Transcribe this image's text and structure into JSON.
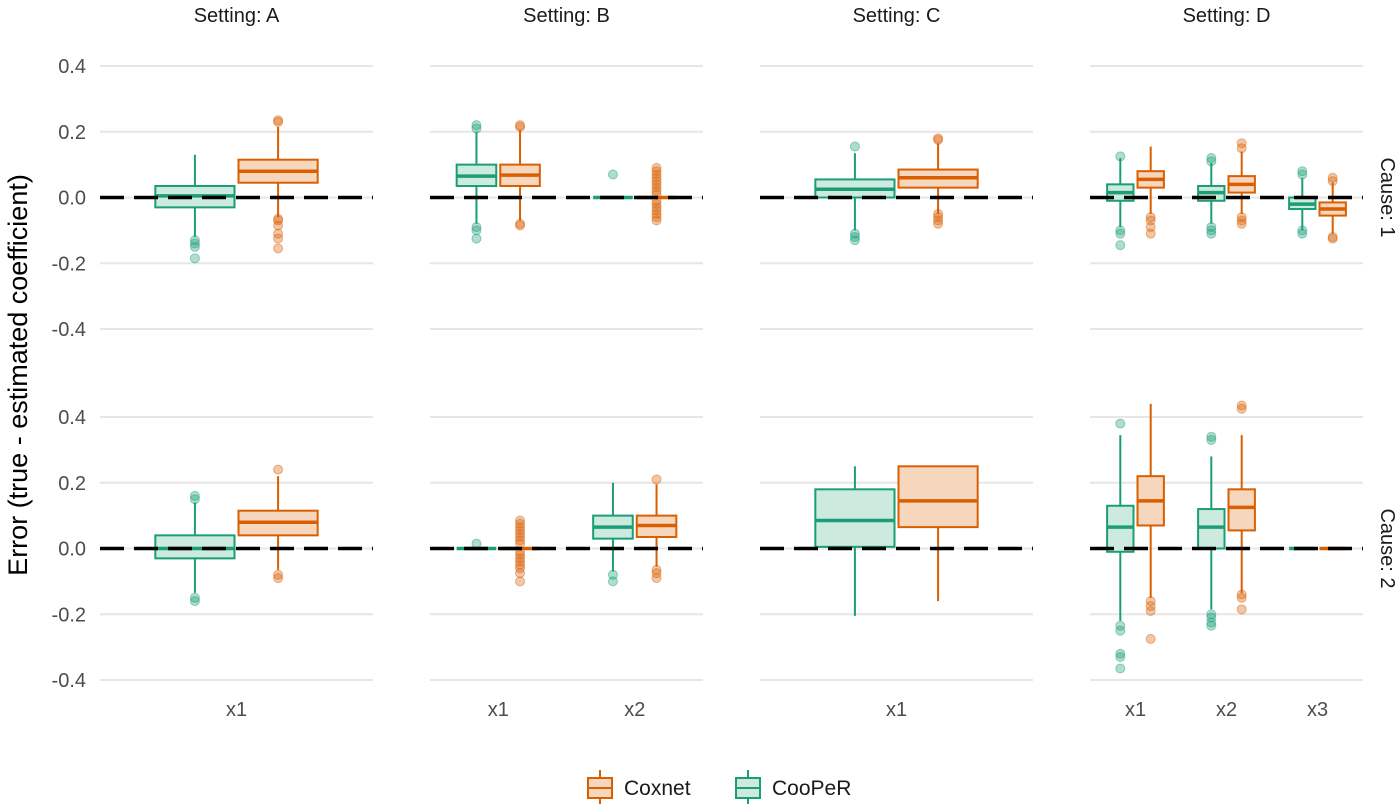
{
  "chart_data": {
    "type": "boxplot",
    "ylabel": "Error (true - estimated coefficient)",
    "y_ticks": [
      "0.4",
      "0.2",
      "0.0",
      "-0.2",
      "-0.4"
    ],
    "ylim": [
      -0.4,
      0.4
    ],
    "reference_line": 0.0,
    "grid": true,
    "legend": {
      "position": "bottom",
      "entries": [
        {
          "name": "Coxnet",
          "color": "#d95f02"
        },
        {
          "name": "CooPeR",
          "color": "#1b9e77"
        }
      ]
    },
    "colors": {
      "Coxnet": "#d95f02",
      "CooPeR": "#1b9e77"
    },
    "columns": [
      {
        "label": "Setting: A",
        "categories": [
          "x1"
        ]
      },
      {
        "label": "Setting: B",
        "categories": [
          "x1",
          "x2"
        ]
      },
      {
        "label": "Setting: C",
        "categories": [
          "x1"
        ]
      },
      {
        "label": "Setting: D",
        "categories": [
          "x1",
          "x2",
          "x3"
        ]
      }
    ],
    "rows": [
      {
        "label": "Cause: 1"
      },
      {
        "label": "Cause: 2"
      }
    ],
    "panels": [
      {
        "row": 0,
        "col": 0,
        "boxes": [
          {
            "cat": "x1",
            "method": "CooPeR",
            "q1": -0.03,
            "median": 0.005,
            "q3": 0.035,
            "lower": -0.12,
            "upper": 0.13,
            "outliers": [
              -0.13,
              -0.14,
              -0.15,
              -0.185
            ]
          },
          {
            "cat": "x1",
            "method": "Coxnet",
            "q1": 0.045,
            "median": 0.08,
            "q3": 0.115,
            "lower": -0.06,
            "upper": 0.215,
            "outliers": [
              0.235,
              0.23,
              -0.065,
              -0.07,
              -0.085,
              -0.11,
              -0.125,
              -0.155
            ]
          }
        ]
      },
      {
        "row": 0,
        "col": 1,
        "boxes": [
          {
            "cat": "x1",
            "method": "CooPeR",
            "q1": 0.035,
            "median": 0.065,
            "q3": 0.1,
            "lower": -0.08,
            "upper": 0.2,
            "outliers": [
              0.22,
              0.21,
              -0.09,
              -0.1,
              -0.125
            ]
          },
          {
            "cat": "x1",
            "method": "Coxnet",
            "q1": 0.035,
            "median": 0.068,
            "q3": 0.1,
            "lower": -0.07,
            "upper": 0.205,
            "outliers": [
              0.22,
              0.215,
              -0.08,
              -0.085
            ]
          },
          {
            "cat": "x2",
            "method": "CooPeR",
            "q1": 0.0,
            "median": 0.0,
            "q3": 0.0,
            "lower": 0.0,
            "upper": 0.0,
            "outliers": [
              0.07
            ]
          },
          {
            "cat": "x2",
            "method": "Coxnet",
            "q1": 0.0,
            "median": 0.0,
            "q3": 0.0,
            "lower": 0.0,
            "upper": 0.0,
            "outliers": [
              0.09,
              0.08,
              0.07,
              0.06,
              0.05,
              0.04,
              0.03,
              0.02,
              0.01,
              -0.01,
              -0.02,
              -0.03,
              -0.04,
              -0.05,
              -0.06,
              -0.07
            ]
          }
        ]
      },
      {
        "row": 0,
        "col": 2,
        "boxes": [
          {
            "cat": "x1",
            "method": "CooPeR",
            "q1": 0.0,
            "median": 0.025,
            "q3": 0.055,
            "lower": -0.1,
            "upper": 0.135,
            "outliers": [
              0.155,
              -0.11,
              -0.12,
              -0.13
            ]
          },
          {
            "cat": "x1",
            "method": "Coxnet",
            "q1": 0.03,
            "median": 0.06,
            "q3": 0.085,
            "lower": -0.05,
            "upper": 0.165,
            "outliers": [
              0.18,
              0.175,
              -0.05,
              -0.06,
              -0.07,
              -0.08
            ]
          }
        ]
      },
      {
        "row": 0,
        "col": 3,
        "boxes": [
          {
            "cat": "x1",
            "method": "CooPeR",
            "q1": -0.01,
            "median": 0.015,
            "q3": 0.04,
            "lower": -0.09,
            "upper": 0.12,
            "outliers": [
              0.125,
              -0.1,
              -0.11,
              -0.145
            ]
          },
          {
            "cat": "x1",
            "method": "Coxnet",
            "q1": 0.03,
            "median": 0.055,
            "q3": 0.08,
            "lower": -0.05,
            "upper": 0.155,
            "outliers": [
              -0.06,
              -0.07,
              -0.09,
              -0.11
            ]
          },
          {
            "cat": "x2",
            "method": "CooPeR",
            "q1": -0.01,
            "median": 0.015,
            "q3": 0.035,
            "lower": -0.08,
            "upper": 0.105,
            "outliers": [
              0.12,
              0.11,
              -0.09,
              -0.1,
              -0.11
            ]
          },
          {
            "cat": "x2",
            "method": "Coxnet",
            "q1": 0.015,
            "median": 0.04,
            "q3": 0.065,
            "lower": -0.05,
            "upper": 0.14,
            "outliers": [
              0.165,
              0.15,
              -0.06,
              -0.07,
              -0.08
            ]
          },
          {
            "cat": "x3",
            "method": "CooPeR",
            "q1": -0.035,
            "median": -0.02,
            "q3": 0.0,
            "lower": -0.1,
            "upper": 0.06,
            "outliers": [
              0.08,
              0.07,
              -0.1,
              -0.11
            ]
          },
          {
            "cat": "x3",
            "method": "Coxnet",
            "q1": -0.055,
            "median": -0.035,
            "q3": -0.015,
            "lower": -0.11,
            "upper": 0.045,
            "outliers": [
              0.06,
              0.05,
              -0.12,
              -0.125
            ]
          }
        ]
      },
      {
        "row": 1,
        "col": 0,
        "boxes": [
          {
            "cat": "x1",
            "method": "CooPeR",
            "q1": -0.03,
            "median": 0.0,
            "q3": 0.04,
            "lower": -0.135,
            "upper": 0.14,
            "outliers": [
              0.16,
              0.15,
              -0.15,
              -0.16
            ]
          },
          {
            "cat": "x1",
            "method": "Coxnet",
            "q1": 0.04,
            "median": 0.08,
            "q3": 0.115,
            "lower": -0.065,
            "upper": 0.22,
            "outliers": [
              0.24,
              -0.08,
              -0.09
            ]
          }
        ]
      },
      {
        "row": 1,
        "col": 1,
        "boxes": [
          {
            "cat": "x1",
            "method": "CooPeR",
            "q1": 0.0,
            "median": 0.0,
            "q3": 0.0,
            "lower": 0.0,
            "upper": 0.0,
            "outliers": [
              0.015
            ]
          },
          {
            "cat": "x1",
            "method": "Coxnet",
            "q1": 0.0,
            "median": 0.0,
            "q3": 0.0,
            "lower": 0.0,
            "upper": 0.0,
            "outliers": [
              0.085,
              0.075,
              0.065,
              0.055,
              0.045,
              0.035,
              0.025,
              0.015,
              -0.01,
              -0.02,
              -0.03,
              -0.04,
              -0.05,
              -0.06,
              -0.075,
              -0.1
            ]
          },
          {
            "cat": "x2",
            "method": "CooPeR",
            "q1": 0.03,
            "median": 0.065,
            "q3": 0.1,
            "lower": -0.07,
            "upper": 0.2,
            "outliers": [
              -0.08,
              -0.1
            ]
          },
          {
            "cat": "x2",
            "method": "Coxnet",
            "q1": 0.035,
            "median": 0.07,
            "q3": 0.1,
            "lower": -0.055,
            "upper": 0.195,
            "outliers": [
              0.21,
              -0.065,
              -0.075,
              -0.09
            ]
          }
        ]
      },
      {
        "row": 1,
        "col": 2,
        "boxes": [
          {
            "cat": "x1",
            "method": "CooPeR",
            "q1": 0.005,
            "median": 0.085,
            "q3": 0.18,
            "lower": -0.205,
            "upper": 0.25,
            "outliers": []
          },
          {
            "cat": "x1",
            "method": "Coxnet",
            "q1": 0.065,
            "median": 0.145,
            "q3": 0.25,
            "lower": -0.16,
            "upper": 0.25,
            "outliers": []
          }
        ]
      },
      {
        "row": 1,
        "col": 3,
        "boxes": [
          {
            "cat": "x1",
            "method": "CooPeR",
            "q1": -0.01,
            "median": 0.065,
            "q3": 0.13,
            "lower": -0.22,
            "upper": 0.345,
            "outliers": [
              0.38,
              -0.235,
              -0.25,
              -0.32,
              -0.33,
              -0.365
            ]
          },
          {
            "cat": "x1",
            "method": "Coxnet",
            "q1": 0.07,
            "median": 0.145,
            "q3": 0.22,
            "lower": -0.15,
            "upper": 0.44,
            "outliers": [
              -0.16,
              -0.175,
              -0.19,
              -0.275
            ]
          },
          {
            "cat": "x2",
            "method": "CooPeR",
            "q1": 0.0,
            "median": 0.065,
            "q3": 0.12,
            "lower": -0.185,
            "upper": 0.28,
            "outliers": [
              0.34,
              0.33,
              -0.2,
              -0.21,
              -0.225,
              -0.235
            ]
          },
          {
            "cat": "x2",
            "method": "Coxnet",
            "q1": 0.055,
            "median": 0.125,
            "q3": 0.18,
            "lower": -0.135,
            "upper": 0.345,
            "outliers": [
              0.435,
              0.425,
              -0.14,
              -0.15,
              -0.185
            ]
          },
          {
            "cat": "x3",
            "method": "CooPeR",
            "q1": 0.0,
            "median": 0.0,
            "q3": 0.0,
            "lower": 0.0,
            "upper": 0.0,
            "outliers": []
          },
          {
            "cat": "x3",
            "method": "Coxnet",
            "q1": 0.0,
            "median": 0.0,
            "q3": 0.0,
            "lower": 0.0,
            "upper": 0.0,
            "outliers": []
          }
        ]
      }
    ]
  }
}
